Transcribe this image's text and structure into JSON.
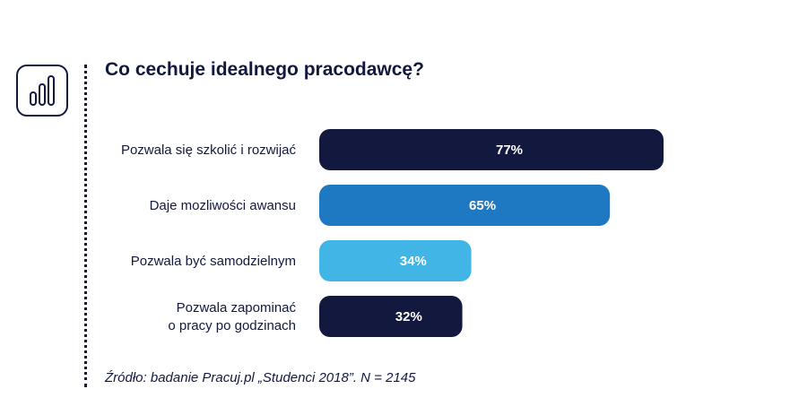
{
  "chart_data": {
    "type": "bar",
    "orientation": "horizontal",
    "title": "Co cechuje idealnego pracodawcę?",
    "categories": [
      [
        "Pozwala się szkolić i rozwijać"
      ],
      [
        "Daje mozliwości awansu"
      ],
      [
        "Pozwala być samodzielnym"
      ],
      [
        "Pozwala zapominać",
        "o pracy po godzinach"
      ]
    ],
    "values": [
      77,
      65,
      34,
      32
    ],
    "value_labels": [
      "77%",
      "65%",
      "34%",
      "32%"
    ],
    "bar_colors": [
      "#13183f",
      "#1f78c2",
      "#41b6e6",
      "#13183f"
    ],
    "xlim": [
      0,
      100
    ],
    "grid": false,
    "legend": "none"
  },
  "footer": {
    "source": "Źródło: badanie Pracuj.pl „Studenci 2018”. N = 2145"
  },
  "icons": {
    "header_icon": "bar-chart-icon"
  },
  "colors": {
    "text": "#13183f"
  }
}
